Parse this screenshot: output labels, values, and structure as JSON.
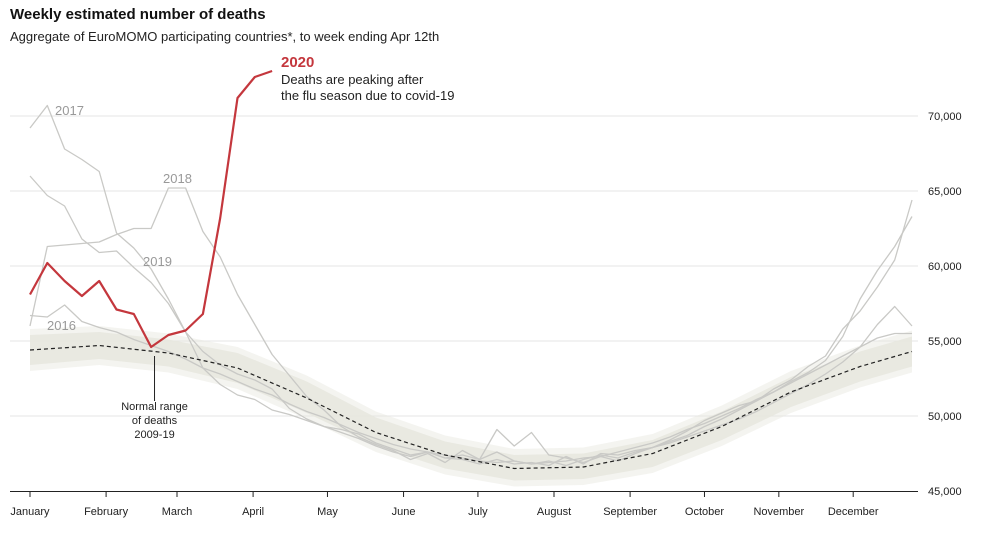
{
  "header": {
    "title": "Weekly estimated number of deaths",
    "subtitle": "Aggregate of EuroMOMO participating countries*, to week ending Apr 12th"
  },
  "colors": {
    "highlight": "#c4373d",
    "past_years": "#c9c9c6",
    "band": "#e6e6de",
    "grid": "#e6e6e6",
    "median": "#222222"
  },
  "chart_data": {
    "type": "line",
    "title": "Weekly estimated number of deaths",
    "subtitle": "Aggregate of EuroMOMO participating countries*, to week ending Apr 12th",
    "xlabel": "",
    "ylabel": "",
    "x_unit": "week of year",
    "xlim": [
      1,
      52
    ],
    "ylim": [
      45000,
      71500
    ],
    "y_ticks": [
      45000,
      50000,
      55000,
      60000,
      65000,
      70000
    ],
    "y_tick_labels": [
      "45,000",
      "50,000",
      "55,000",
      "60,000",
      "65,000",
      "70,000"
    ],
    "y_axis_side": "right",
    "grid": true,
    "x_ticks": [
      {
        "label": "January",
        "week": 1
      },
      {
        "label": "February",
        "week": 5.4
      },
      {
        "label": "March",
        "week": 9.5
      },
      {
        "label": "April",
        "week": 13.9
      },
      {
        "label": "May",
        "week": 18.2
      },
      {
        "label": "June",
        "week": 22.6
      },
      {
        "label": "July",
        "week": 26.9
      },
      {
        "label": "August",
        "week": 31.3
      },
      {
        "label": "September",
        "week": 35.7
      },
      {
        "label": "October",
        "week": 40
      },
      {
        "label": "November",
        "week": 44.3
      },
      {
        "label": "December",
        "week": 48.6
      }
    ],
    "normal_range": {
      "label_lines": [
        "Normal range",
        "of deaths",
        "2009-19"
      ],
      "weeks": [
        1,
        5,
        9,
        13,
        17,
        21,
        25,
        29,
        33,
        37,
        41,
        45,
        49,
        52
      ],
      "median": [
        54400,
        54700,
        54200,
        53200,
        51200,
        48900,
        47400,
        46500,
        46600,
        47500,
        49300,
        51600,
        53300,
        54300
      ],
      "lower": [
        53400,
        53800,
        53300,
        52200,
        50200,
        48000,
        46500,
        45700,
        45800,
        46600,
        48400,
        50600,
        52300,
        53300
      ],
      "upper": [
        55400,
        55600,
        55100,
        54200,
        52300,
        49900,
        48300,
        47400,
        47500,
        48400,
        50300,
        52600,
        54300,
        55300
      ]
    },
    "series": [
      {
        "name": "2020",
        "highlight": true,
        "x": [
          1,
          2,
          3,
          4,
          5,
          6,
          7,
          8,
          9,
          10,
          11,
          12,
          13,
          14,
          15
        ],
        "values": [
          58100,
          60200,
          59000,
          58000,
          59000,
          57100,
          56800,
          54600,
          55400,
          55700,
          56800,
          63200,
          71200,
          72600,
          73000
        ]
      },
      {
        "name": "2017",
        "x": [
          1,
          2,
          3,
          4,
          5,
          6,
          7,
          8,
          9,
          10,
          11,
          12,
          13,
          14,
          15,
          16,
          17,
          18,
          19,
          20,
          21,
          22,
          23,
          24,
          25,
          26,
          27,
          28,
          29,
          30,
          31,
          32,
          33,
          34,
          35,
          36,
          37,
          38,
          39,
          40,
          41,
          42,
          43,
          44,
          45,
          46,
          47,
          48,
          49,
          50,
          51,
          52
        ],
        "values": [
          69200,
          70700,
          67800,
          67100,
          66300,
          62200,
          61200,
          59800,
          57800,
          55600,
          53200,
          52100,
          51400,
          51100,
          50400,
          50100,
          49700,
          49300,
          49100,
          48800,
          48200,
          47800,
          47400,
          47600,
          47200,
          47400,
          47100,
          47600,
          47000,
          46800,
          47000,
          46700,
          47100,
          47400,
          47200,
          47600,
          47900,
          48200,
          48600,
          49000,
          49400,
          49800,
          50300,
          50900,
          51500,
          52100,
          52800,
          53600,
          54600,
          56100,
          57300,
          56000
        ]
      },
      {
        "name": "2018",
        "x": [
          1,
          2,
          3,
          4,
          5,
          6,
          7,
          8,
          9,
          10,
          11,
          12,
          13,
          14,
          15,
          16,
          17,
          18,
          19,
          20,
          21,
          22,
          23,
          24,
          25,
          26,
          27,
          28,
          29,
          30,
          31,
          32,
          33,
          34,
          35,
          36,
          37,
          38,
          39,
          40,
          41,
          42,
          43,
          44,
          45,
          46,
          47,
          48,
          49,
          50,
          51,
          52
        ],
        "values": [
          56000,
          61300,
          61400,
          61500,
          61600,
          62100,
          62500,
          62500,
          65200,
          65200,
          62300,
          60600,
          58100,
          56100,
          54100,
          52700,
          51300,
          50400,
          49300,
          48600,
          48100,
          47700,
          47100,
          47500,
          46900,
          47700,
          47100,
          49100,
          48000,
          48900,
          47400,
          47200,
          46900,
          47300,
          47000,
          47500,
          47900,
          48300,
          48700,
          49300,
          49800,
          50400,
          51000,
          51600,
          52300,
          52900,
          53700,
          55300,
          57800,
          59700,
          61300,
          63300
        ]
      },
      {
        "name": "2019",
        "x": [
          1,
          2,
          3,
          4,
          5,
          6,
          7,
          8,
          9,
          10,
          11,
          12,
          13,
          14,
          15,
          16,
          17,
          18,
          19,
          20,
          21,
          22,
          23,
          24,
          25,
          26,
          27,
          28,
          29,
          30,
          31,
          32,
          33,
          34,
          35,
          36,
          37,
          38,
          39,
          40,
          41,
          42,
          43,
          44,
          45,
          46,
          47,
          48,
          49,
          50,
          51,
          52
        ],
        "values": [
          66000,
          64700,
          64000,
          61800,
          60900,
          61000,
          59900,
          58900,
          57500,
          55600,
          54300,
          53400,
          52800,
          52400,
          51800,
          50500,
          49800,
          49300,
          48900,
          48500,
          48000,
          47600,
          47300,
          47600,
          47200,
          47100,
          46800,
          47100,
          46800,
          46900,
          46700,
          47300,
          46800,
          47500,
          47400,
          47700,
          47900,
          48400,
          49000,
          49700,
          50200,
          50700,
          51000,
          51800,
          52400,
          53300,
          54000,
          55800,
          57000,
          58600,
          60400,
          64400
        ]
      },
      {
        "name": "2016",
        "x": [
          1,
          2,
          3,
          4,
          5,
          6,
          7,
          8,
          9,
          10,
          11,
          12,
          13,
          14,
          15,
          16,
          17,
          18,
          19,
          20,
          21,
          22,
          23,
          24,
          25,
          26,
          27,
          28,
          29,
          30,
          31,
          32,
          33,
          34,
          35,
          36,
          37,
          38,
          39,
          40,
          41,
          42,
          43,
          44,
          45,
          46,
          47,
          48,
          49,
          50,
          51,
          52
        ],
        "values": [
          56700,
          56600,
          57400,
          56300,
          55900,
          55600,
          55100,
          54700,
          54300,
          53800,
          53200,
          52800,
          52300,
          51800,
          51400,
          50800,
          50300,
          49900,
          49400,
          48900,
          48500,
          48100,
          47800,
          47600,
          47400,
          47200,
          47000,
          46900,
          47000,
          46800,
          46900,
          47000,
          47200,
          47300,
          47600,
          47900,
          48200,
          48600,
          49100,
          49500,
          50000,
          50500,
          51100,
          51600,
          52200,
          52800,
          53400,
          54000,
          54600,
          55200,
          55500,
          55500
        ]
      }
    ],
    "annotations": {
      "highlight_note": [
        "Deaths are peaking after",
        "the flu season due to covid-19"
      ]
    }
  }
}
